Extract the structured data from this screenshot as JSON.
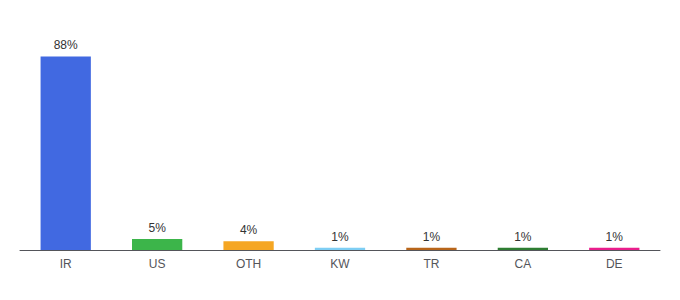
{
  "chart_data": {
    "type": "bar",
    "categories": [
      "IR",
      "US",
      "OTH",
      "KW",
      "TR",
      "CA",
      "DE"
    ],
    "values": [
      88,
      5,
      4,
      1,
      1,
      1,
      1
    ],
    "value_labels": [
      "88%",
      "5%",
      "4%",
      "1%",
      "1%",
      "1%",
      "1%"
    ],
    "colors": [
      "#4169e1",
      "#3cb54a",
      "#f5a623",
      "#7ecef4",
      "#b8651a",
      "#2e7d32",
      "#e91e8c"
    ],
    "ylim": [
      0,
      100
    ],
    "data_labels": true,
    "tick_labels": "x",
    "grid": false
  }
}
